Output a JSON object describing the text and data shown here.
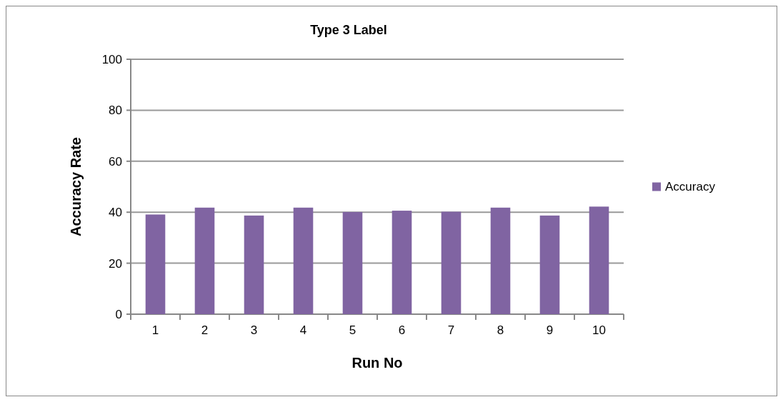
{
  "chart_data": {
    "type": "bar",
    "title": "Type 3 Label",
    "xlabel": "Run No",
    "ylabel": "Accuracy Rate",
    "categories": [
      "1",
      "2",
      "3",
      "4",
      "5",
      "6",
      "7",
      "8",
      "9",
      "10"
    ],
    "series": [
      {
        "name": "Accuracy",
        "color": "#8064a2",
        "values": [
          39.1,
          41.8,
          38.7,
          41.8,
          40.1,
          40.6,
          40.2,
          41.8,
          38.7,
          42.2
        ]
      }
    ],
    "ylim": [
      0,
      100
    ],
    "yticks": [
      0,
      20,
      40,
      60,
      80,
      100
    ],
    "grid": "y",
    "legend": "right"
  }
}
